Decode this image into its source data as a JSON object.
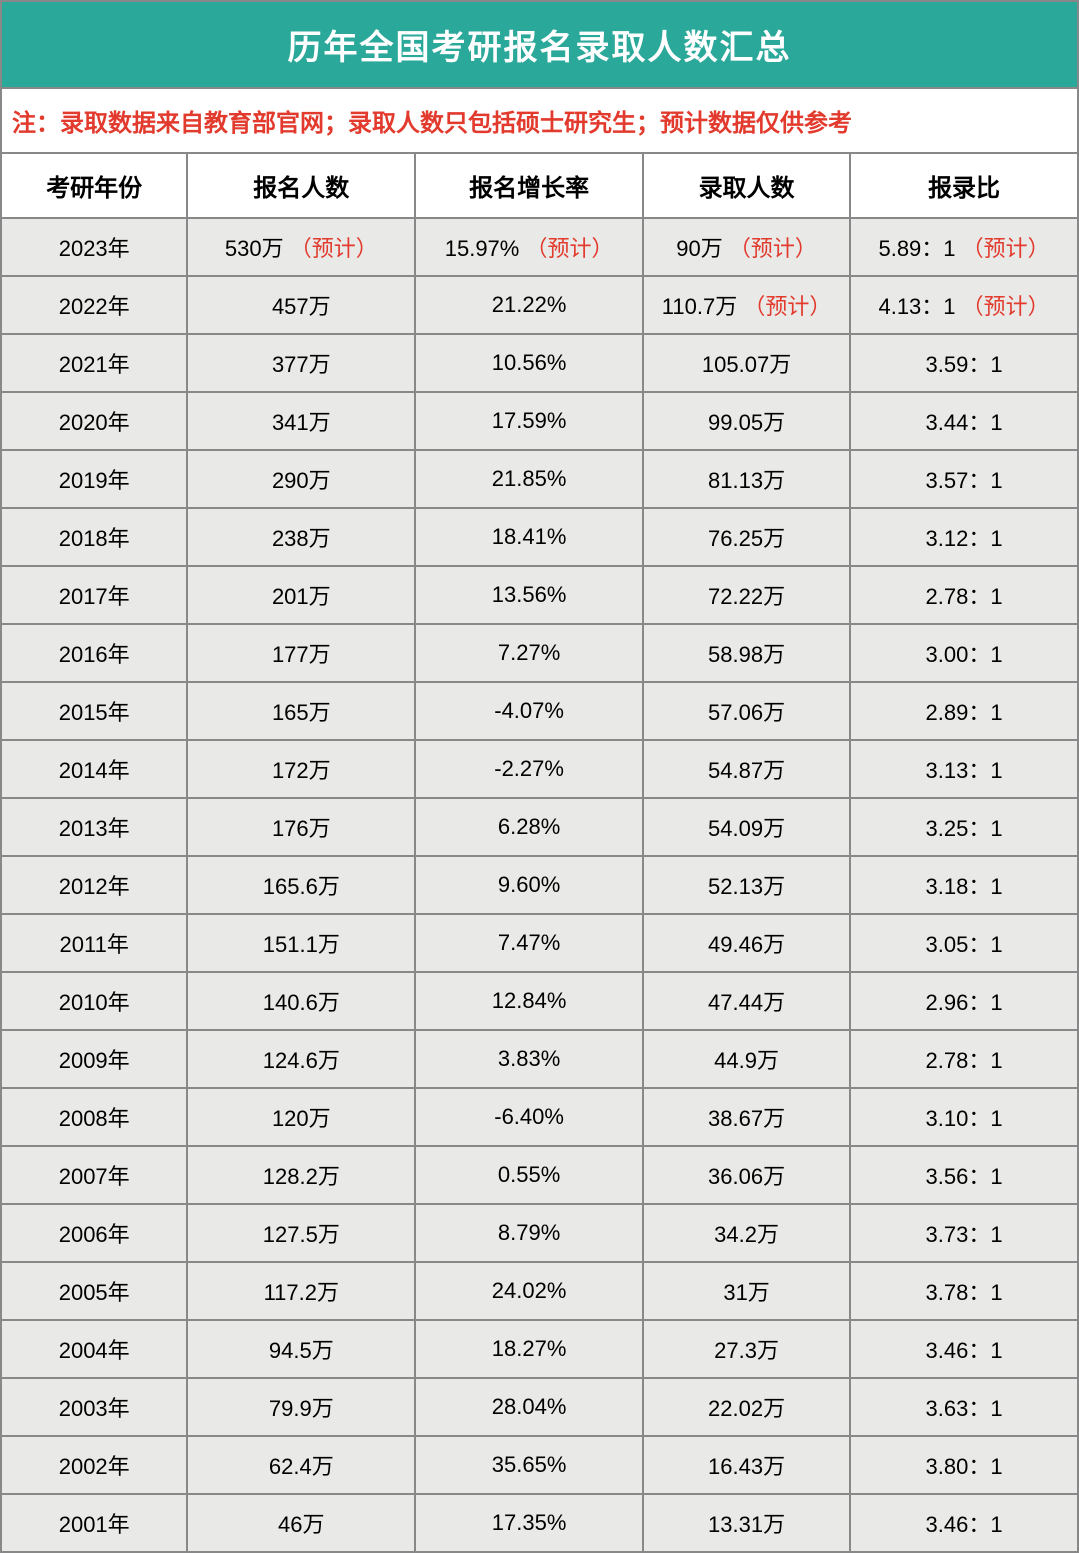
{
  "title": "历年全国考研报名录取人数汇总",
  "note": "注：录取数据来自教育部官网；录取人数只包括硕士研究生；预计数据仅供参考",
  "estimate_label": "（预计）",
  "columns": [
    "考研年份",
    "报名人数",
    "报名增长率",
    "录取人数",
    "报录比"
  ],
  "rows": [
    {
      "year": "2023年",
      "applicants": "530万",
      "applicants_est": true,
      "growth": "15.97%",
      "growth_est": true,
      "admitted": "90万",
      "admitted_est": true,
      "ratio": "5.89：1",
      "ratio_est": true
    },
    {
      "year": "2022年",
      "applicants": "457万",
      "applicants_est": false,
      "growth": "21.22%",
      "growth_est": false,
      "admitted": "110.7万",
      "admitted_est": true,
      "ratio": "4.13：1",
      "ratio_est": true
    },
    {
      "year": "2021年",
      "applicants": "377万",
      "applicants_est": false,
      "growth": "10.56%",
      "growth_est": false,
      "admitted": "105.07万",
      "admitted_est": false,
      "ratio": "3.59：1",
      "ratio_est": false
    },
    {
      "year": "2020年",
      "applicants": "341万",
      "applicants_est": false,
      "growth": "17.59%",
      "growth_est": false,
      "admitted": "99.05万",
      "admitted_est": false,
      "ratio": "3.44：1",
      "ratio_est": false
    },
    {
      "year": "2019年",
      "applicants": "290万",
      "applicants_est": false,
      "growth": "21.85%",
      "growth_est": false,
      "admitted": "81.13万",
      "admitted_est": false,
      "ratio": "3.57：1",
      "ratio_est": false
    },
    {
      "year": "2018年",
      "applicants": "238万",
      "applicants_est": false,
      "growth": "18.41%",
      "growth_est": false,
      "admitted": "76.25万",
      "admitted_est": false,
      "ratio": "3.12：1",
      "ratio_est": false
    },
    {
      "year": "2017年",
      "applicants": "201万",
      "applicants_est": false,
      "growth": "13.56%",
      "growth_est": false,
      "admitted": "72.22万",
      "admitted_est": false,
      "ratio": "2.78：1",
      "ratio_est": false
    },
    {
      "year": "2016年",
      "applicants": "177万",
      "applicants_est": false,
      "growth": "7.27%",
      "growth_est": false,
      "admitted": "58.98万",
      "admitted_est": false,
      "ratio": "3.00：1",
      "ratio_est": false
    },
    {
      "year": "2015年",
      "applicants": "165万",
      "applicants_est": false,
      "growth": "-4.07%",
      "growth_est": false,
      "admitted": "57.06万",
      "admitted_est": false,
      "ratio": "2.89：1",
      "ratio_est": false
    },
    {
      "year": "2014年",
      "applicants": "172万",
      "applicants_est": false,
      "growth": "-2.27%",
      "growth_est": false,
      "admitted": "54.87万",
      "admitted_est": false,
      "ratio": "3.13：1",
      "ratio_est": false
    },
    {
      "year": "2013年",
      "applicants": "176万",
      "applicants_est": false,
      "growth": "6.28%",
      "growth_est": false,
      "admitted": "54.09万",
      "admitted_est": false,
      "ratio": "3.25：1",
      "ratio_est": false
    },
    {
      "year": "2012年",
      "applicants": "165.6万",
      "applicants_est": false,
      "growth": "9.60%",
      "growth_est": false,
      "admitted": "52.13万",
      "admitted_est": false,
      "ratio": "3.18：1",
      "ratio_est": false
    },
    {
      "year": "2011年",
      "applicants": "151.1万",
      "applicants_est": false,
      "growth": "7.47%",
      "growth_est": false,
      "admitted": "49.46万",
      "admitted_est": false,
      "ratio": "3.05：1",
      "ratio_est": false
    },
    {
      "year": "2010年",
      "applicants": "140.6万",
      "applicants_est": false,
      "growth": "12.84%",
      "growth_est": false,
      "admitted": "47.44万",
      "admitted_est": false,
      "ratio": "2.96：1",
      "ratio_est": false
    },
    {
      "year": "2009年",
      "applicants": "124.6万",
      "applicants_est": false,
      "growth": "3.83%",
      "growth_est": false,
      "admitted": "44.9万",
      "admitted_est": false,
      "ratio": "2.78：1",
      "ratio_est": false
    },
    {
      "year": "2008年",
      "applicants": "120万",
      "applicants_est": false,
      "growth": "-6.40%",
      "growth_est": false,
      "admitted": "38.67万",
      "admitted_est": false,
      "ratio": "3.10：1",
      "ratio_est": false
    },
    {
      "year": "2007年",
      "applicants": "128.2万",
      "applicants_est": false,
      "growth": "0.55%",
      "growth_est": false,
      "admitted": "36.06万",
      "admitted_est": false,
      "ratio": "3.56：1",
      "ratio_est": false
    },
    {
      "year": "2006年",
      "applicants": "127.5万",
      "applicants_est": false,
      "growth": "8.79%",
      "growth_est": false,
      "admitted": "34.2万",
      "admitted_est": false,
      "ratio": "3.73：1",
      "ratio_est": false
    },
    {
      "year": "2005年",
      "applicants": "117.2万",
      "applicants_est": false,
      "growth": "24.02%",
      "growth_est": false,
      "admitted": "31万",
      "admitted_est": false,
      "ratio": "3.78：1",
      "ratio_est": false
    },
    {
      "year": "2004年",
      "applicants": "94.5万",
      "applicants_est": false,
      "growth": "18.27%",
      "growth_est": false,
      "admitted": "27.3万",
      "admitted_est": false,
      "ratio": "3.46：1",
      "ratio_est": false
    },
    {
      "year": "2003年",
      "applicants": "79.9万",
      "applicants_est": false,
      "growth": "28.04%",
      "growth_est": false,
      "admitted": "22.02万",
      "admitted_est": false,
      "ratio": "3.63：1",
      "ratio_est": false
    },
    {
      "year": "2002年",
      "applicants": "62.4万",
      "applicants_est": false,
      "growth": "35.65%",
      "growth_est": false,
      "admitted": "16.43万",
      "admitted_est": false,
      "ratio": "3.80：1",
      "ratio_est": false
    },
    {
      "year": "2001年",
      "applicants": "46万",
      "applicants_est": false,
      "growth": "17.35%",
      "growth_est": false,
      "admitted": "13.31万",
      "admitted_est": false,
      "ratio": "3.46：1",
      "ratio_est": false
    }
  ],
  "styling": {
    "title_bg": "#2aa89a",
    "title_color": "#ffffff",
    "note_color": "#e23b2e",
    "header_bg": "#ffffff",
    "row_bg": "#e9e9e7",
    "border_color": "#888888",
    "estimate_color": "#e23b2e",
    "title_fontsize": 34,
    "note_fontsize": 24,
    "header_fontsize": 24,
    "cell_fontsize": 22
  }
}
